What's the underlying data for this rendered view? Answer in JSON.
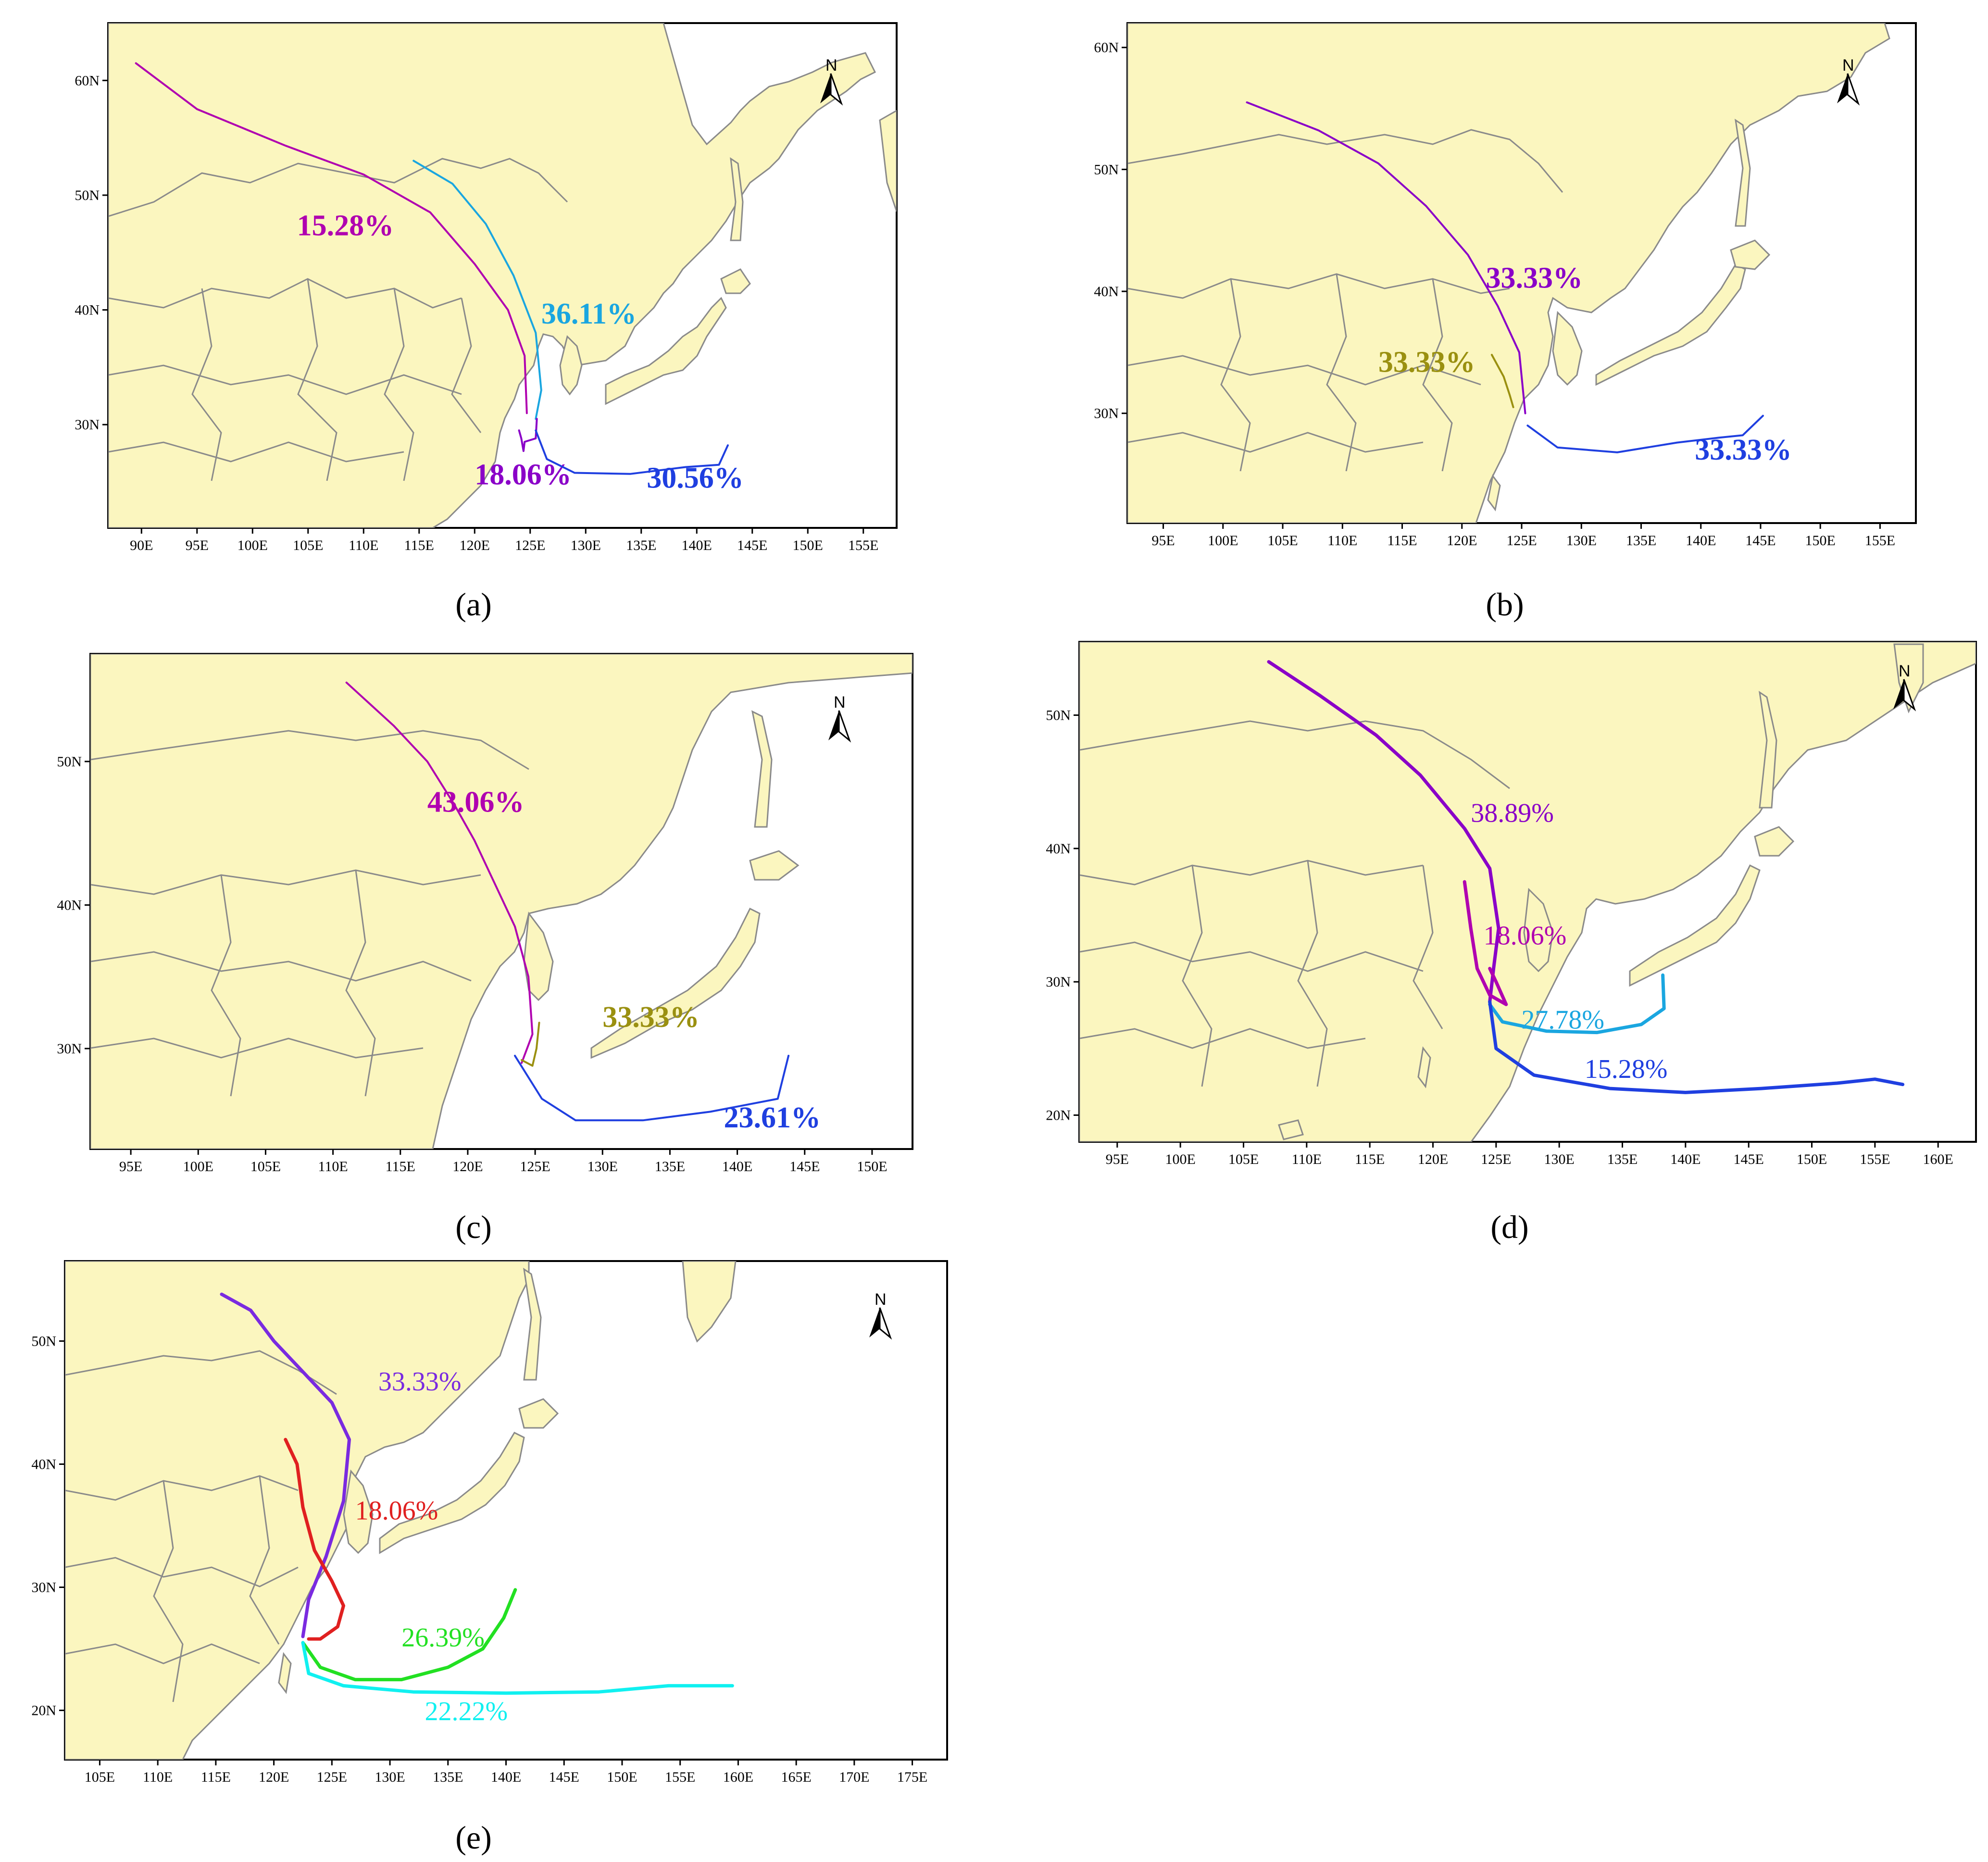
{
  "figure": {
    "panels": [
      {
        "id": "a",
        "caption": "(a)",
        "lon_ticks": [
          "90E",
          "95E",
          "100E",
          "105E",
          "110E",
          "115E",
          "120E",
          "125E",
          "130E",
          "135E",
          "140E",
          "145E",
          "150E",
          "155E"
        ],
        "lat_ticks": [
          "30N",
          "40N",
          "50N",
          "60N"
        ],
        "lon_range": [
          87,
          158
        ],
        "lat_range": [
          21,
          65
        ],
        "north_label": "N",
        "bold_labels": true,
        "trajectories": [
          {
            "percent": "15.28%",
            "color": "#b000b0",
            "path": [
              [
                89.5,
                61.5
              ],
              [
                95,
                57.5
              ],
              [
                103,
                54.3
              ],
              [
                110,
                51.8
              ],
              [
                116,
                48.5
              ],
              [
                120,
                44
              ],
              [
                123,
                40
              ],
              [
                124.5,
                36
              ],
              [
                124.7,
                31
              ]
            ],
            "label_at": [
              104,
              46.5
            ]
          },
          {
            "percent": "36.11%",
            "color": "#1aa6e0",
            "path": [
              [
                114.5,
                53
              ],
              [
                118,
                51
              ],
              [
                121,
                47.5
              ],
              [
                123.5,
                43
              ],
              [
                125.5,
                38
              ],
              [
                126,
                33
              ],
              [
                125.5,
                30.5
              ]
            ],
            "label_at": [
              126,
              38.8
            ]
          },
          {
            "percent": "18.06%",
            "color": "#8a00c8",
            "path": [
              [
                124,
                29.5
              ],
              [
                124.2,
                28.8
              ],
              [
                124.4,
                27.7
              ],
              [
                124.5,
                28.5
              ],
              [
                125.5,
                28.8
              ],
              [
                125.6,
                30.5
              ]
            ],
            "label_at": [
              120,
              24.8
            ]
          },
          {
            "percent": "30.56%",
            "color": "#1f3fe0",
            "path": [
              [
                125.5,
                29.5
              ],
              [
                126.5,
                27
              ],
              [
                129,
                25.8
              ],
              [
                134,
                25.7
              ],
              [
                139,
                26.3
              ],
              [
                142,
                26.5
              ],
              [
                142.8,
                28.2
              ]
            ],
            "label_at": [
              135.5,
              24.5
            ]
          }
        ]
      },
      {
        "id": "b",
        "caption": "(b)",
        "lon_ticks": [
          "95E",
          "100E",
          "105E",
          "110E",
          "115E",
          "120E",
          "125E",
          "130E",
          "135E",
          "140E",
          "145E",
          "150E",
          "155E"
        ],
        "lat_ticks": [
          "30N",
          "40N",
          "50N",
          "60N"
        ],
        "lon_range": [
          92,
          158
        ],
        "lat_range": [
          21,
          62
        ],
        "north_label": "N",
        "bold_labels": true,
        "trajectories": [
          {
            "percent": "33.33%",
            "color": "#8a00c8",
            "path": [
              [
                102,
                55.5
              ],
              [
                108,
                53.2
              ],
              [
                113,
                50.5
              ],
              [
                117,
                47
              ],
              [
                120.5,
                43
              ],
              [
                123,
                38.8
              ],
              [
                124.8,
                35
              ],
              [
                125.3,
                30
              ]
            ],
            "label_at": [
              122,
              40.3
            ]
          },
          {
            "percent": "33.33%",
            "color": "#9a9010",
            "path": [
              [
                122.5,
                34.8
              ],
              [
                123.5,
                33
              ],
              [
                124,
                31.5
              ],
              [
                124.3,
                30.5
              ]
            ],
            "label_at": [
              113,
              33.4
            ]
          },
          {
            "percent": "33.33%",
            "color": "#1f3fe0",
            "path": [
              [
                125.5,
                29
              ],
              [
                128,
                27.2
              ],
              [
                133,
                26.8
              ],
              [
                138,
                27.6
              ],
              [
                141.5,
                28
              ],
              [
                143.5,
                28.2
              ],
              [
                145.2,
                29.8
              ]
            ],
            "label_at": [
              139.5,
              26.2
            ]
          }
        ]
      },
      {
        "id": "c",
        "caption": "(c)",
        "lon_ticks": [
          "95E",
          "100E",
          "105E",
          "110E",
          "115E",
          "120E",
          "125E",
          "130E",
          "135E",
          "140E",
          "145E",
          "150E"
        ],
        "lat_ticks": [
          "30N",
          "40N",
          "50N"
        ],
        "lon_range": [
          92,
          153
        ],
        "lat_range": [
          23,
          57.5
        ],
        "north_label": "N",
        "bold_labels": true,
        "trajectories": [
          {
            "percent": "43.06%",
            "color": "#b000b0",
            "path": [
              [
                111,
                55.5
              ],
              [
                114.5,
                52.5
              ],
              [
                117,
                50
              ],
              [
                119,
                47
              ],
              [
                120.5,
                44.5
              ],
              [
                122,
                41.5
              ],
              [
                123.5,
                38.5
              ],
              [
                124.5,
                35
              ],
              [
                124.8,
                31
              ],
              [
                124,
                29
              ]
            ],
            "label_at": [
              117,
              46.5
            ]
          },
          {
            "percent": "33.33%",
            "color": "#9a9010",
            "path": [
              [
                125.3,
                31.8
              ],
              [
                125.1,
                30
              ],
              [
                124.8,
                28.8
              ],
              [
                124,
                29.2
              ]
            ],
            "label_at": [
              130,
              31.5
            ]
          },
          {
            "percent": "23.61%",
            "color": "#1f3fe0",
            "path": [
              [
                123.5,
                29.5
              ],
              [
                125.5,
                26.5
              ],
              [
                128,
                25
              ],
              [
                133,
                25
              ],
              [
                138,
                25.6
              ],
              [
                143,
                26.5
              ],
              [
                143.8,
                29.5
              ]
            ],
            "label_at": [
              139,
              24.5
            ]
          }
        ]
      },
      {
        "id": "d",
        "caption": "(d)",
        "lon_ticks": [
          "95E",
          "100E",
          "105E",
          "110E",
          "115E",
          "120E",
          "125E",
          "130E",
          "135E",
          "140E",
          "145E",
          "150E",
          "155E",
          "160E"
        ],
        "lat_ticks": [
          "20N",
          "30N",
          "40N",
          "50N"
        ],
        "lon_range": [
          92,
          163
        ],
        "lat_range": [
          18,
          55.5
        ],
        "north_label": "N",
        "bold_labels": false,
        "trajectories": [
          {
            "percent": "38.89%",
            "color": "#8a00c8",
            "path": [
              [
                107,
                54
              ],
              [
                111,
                51.5
              ],
              [
                115.5,
                48.5
              ],
              [
                119,
                45.5
              ],
              [
                122.5,
                41.5
              ],
              [
                124.5,
                38.5
              ],
              [
                125.2,
                34
              ],
              [
                124.8,
                31
              ],
              [
                124.5,
                28.5
              ]
            ],
            "label_at": [
              123,
              42
            ]
          },
          {
            "percent": "18.06%",
            "color": "#b000b0",
            "path": [
              [
                122.5,
                37.5
              ],
              [
                123,
                34
              ],
              [
                123.5,
                31
              ],
              [
                124.5,
                29
              ],
              [
                125.8,
                28.3
              ],
              [
                125,
                30
              ],
              [
                124.5,
                31
              ]
            ],
            "label_at": [
              124,
              32.8
            ]
          },
          {
            "percent": "27.78%",
            "color": "#1aa6e0",
            "path": [
              [
                124.5,
                28.3
              ],
              [
                125.5,
                27
              ],
              [
                129,
                26.3
              ],
              [
                133,
                26.2
              ],
              [
                136.5,
                26.8
              ],
              [
                138.3,
                28
              ],
              [
                138.2,
                30.5
              ]
            ],
            "label_at": [
              127,
              26.5
            ]
          },
          {
            "percent": "15.28%",
            "color": "#1f3fe0",
            "path": [
              [
                124.5,
                28.5
              ],
              [
                125,
                25
              ],
              [
                128,
                23
              ],
              [
                134,
                22
              ],
              [
                140,
                21.7
              ],
              [
                146,
                22
              ],
              [
                152,
                22.4
              ],
              [
                155,
                22.7
              ],
              [
                157.2,
                22.3
              ]
            ],
            "label_at": [
              132,
              22.8
            ]
          }
        ]
      },
      {
        "id": "e",
        "caption": "(e)",
        "lon_ticks": [
          "105E",
          "110E",
          "115E",
          "120E",
          "125E",
          "130E",
          "135E",
          "140E",
          "145E",
          "150E",
          "155E",
          "160E",
          "165E",
          "170E",
          "175E"
        ],
        "lat_ticks": [
          "20N",
          "30N",
          "40N",
          "50N"
        ],
        "lon_range": [
          102,
          178
        ],
        "lat_range": [
          16,
          56.5
        ],
        "north_label": "N",
        "bold_labels": false,
        "trajectories": [
          {
            "percent": "33.33%",
            "color": "#7a2ae0",
            "path": [
              [
                115.5,
                53.8
              ],
              [
                118,
                52.5
              ],
              [
                120,
                50
              ],
              [
                122.5,
                47.5
              ],
              [
                125,
                45
              ],
              [
                126.5,
                42
              ],
              [
                126,
                37
              ],
              [
                124.5,
                32.5
              ],
              [
                123,
                29
              ],
              [
                122.5,
                26
              ]
            ],
            "label_at": [
              129,
              46
            ]
          },
          {
            "percent": "18.06%",
            "color": "#e02020",
            "path": [
              [
                121,
                42
              ],
              [
                122,
                40
              ],
              [
                122.5,
                36.5
              ],
              [
                123.5,
                33
              ],
              [
                125,
                30.5
              ],
              [
                126,
                28.5
              ],
              [
                125.5,
                26.8
              ],
              [
                124,
                25.8
              ],
              [
                123,
                25.8
              ]
            ],
            "label_at": [
              127,
              35.5
            ]
          },
          {
            "percent": "26.39%",
            "color": "#22e022",
            "path": [
              [
                122.5,
                25.5
              ],
              [
                124,
                23.5
              ],
              [
                127,
                22.5
              ],
              [
                131,
                22.5
              ],
              [
                135,
                23.5
              ],
              [
                138,
                25
              ],
              [
                139.8,
                27.5
              ],
              [
                140.8,
                29.8
              ]
            ],
            "label_at": [
              131,
              25.2
            ]
          },
          {
            "percent": "22.22%",
            "color": "#10f0f0",
            "path": [
              [
                122.5,
                25.5
              ],
              [
                123,
                23
              ],
              [
                126,
                22
              ],
              [
                132,
                21.5
              ],
              [
                140,
                21.4
              ],
              [
                148,
                21.5
              ],
              [
                154,
                22
              ],
              [
                159.5,
                22
              ]
            ],
            "label_at": [
              133,
              19.2
            ]
          }
        ]
      }
    ]
  },
  "colors": {
    "land": "#fbf6bf",
    "sea": "#ffffff",
    "border": "#8a8a8a"
  }
}
